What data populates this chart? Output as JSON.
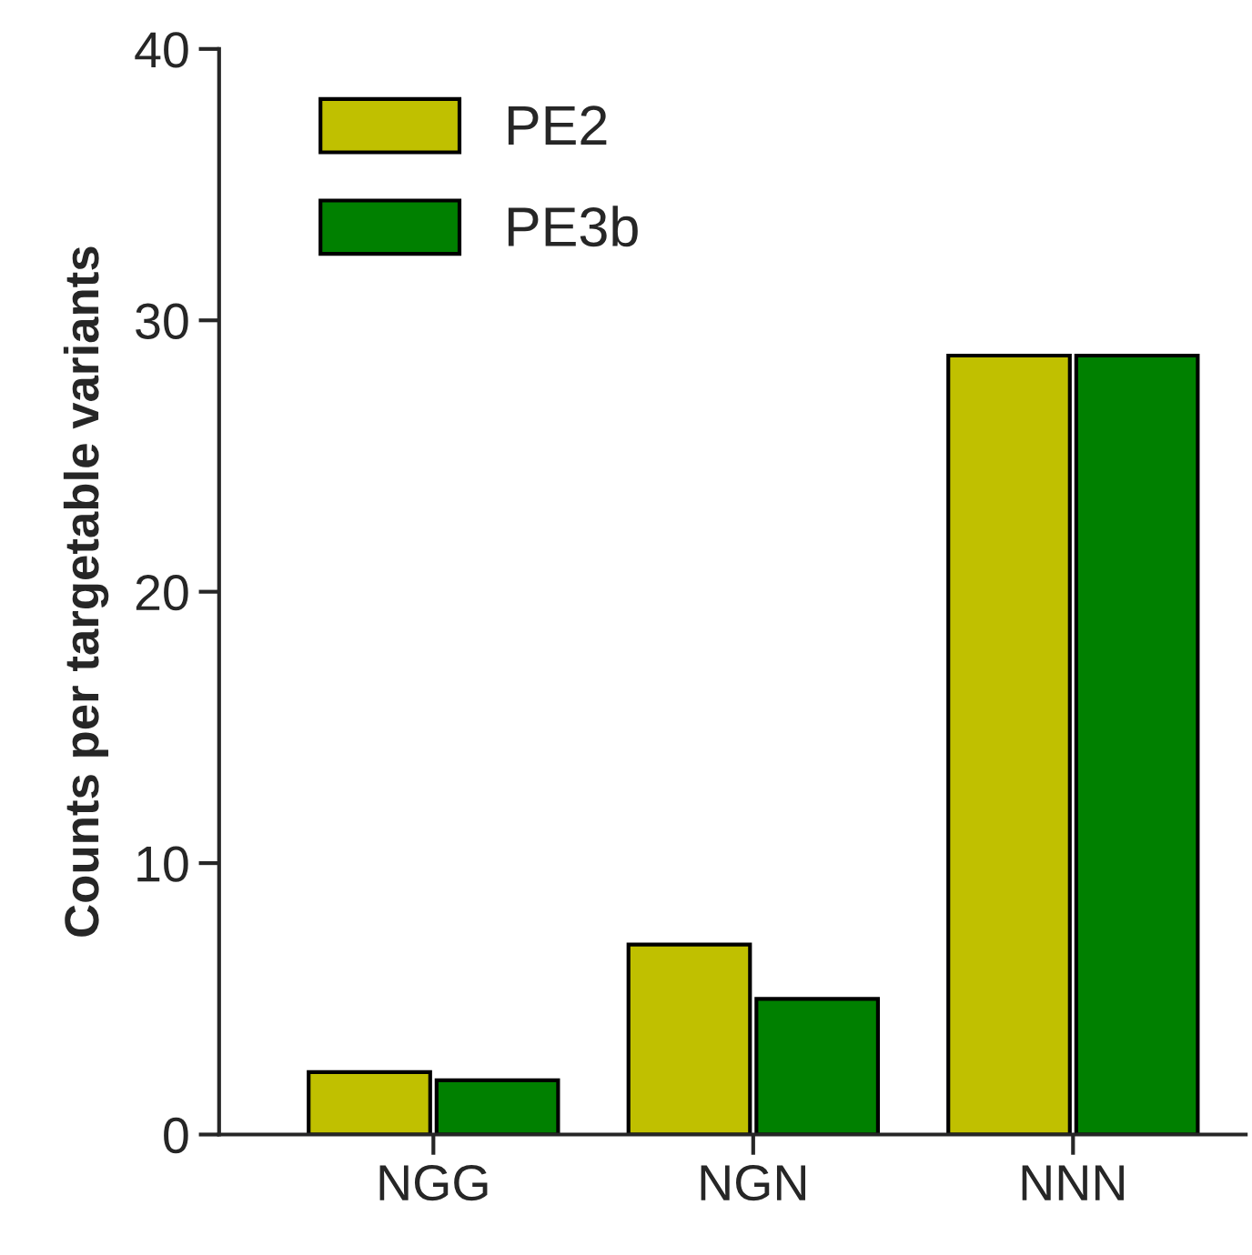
{
  "chart_data": {
    "type": "bar",
    "ylabel": "Counts per targetable variants",
    "categories": [
      "NGG",
      "NGN",
      "NNN"
    ],
    "series": [
      {
        "name": "PE2",
        "color": "#c0c000",
        "values": [
          2.3,
          7,
          28.7
        ]
      },
      {
        "name": "PE3b",
        "color": "#008000",
        "values": [
          2.0,
          5,
          28.7
        ]
      }
    ],
    "ylim": [
      0,
      40
    ],
    "yticks": [
      0,
      10,
      20,
      30,
      40
    ],
    "grid": false,
    "legend": "top left"
  }
}
